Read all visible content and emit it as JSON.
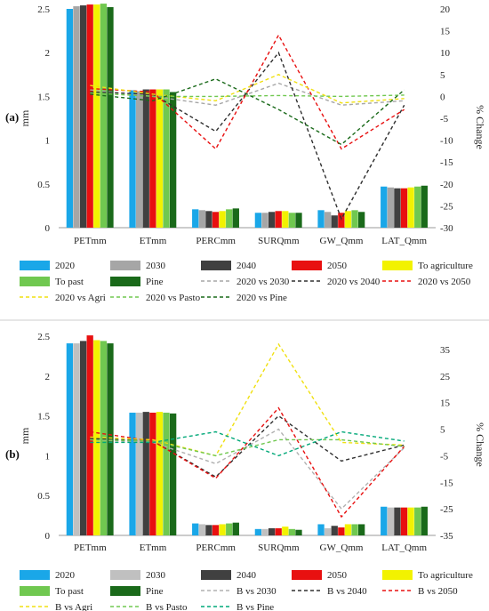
{
  "divider_color": "#cccccc",
  "chart_data": [
    {
      "type": "bar",
      "panel_label": "(a)",
      "categories": [
        "PETmm",
        "ETmm",
        "PERCmm",
        "SURQmm",
        "GW_Qmm",
        "LAT_Qmm"
      ],
      "ylabel": "mm",
      "ylim": [
        0,
        2.5
      ],
      "yticks": [
        "0",
        "0.5",
        "1",
        "1.5",
        "2",
        "2.5"
      ],
      "y2label": "% Change",
      "y2lim": [
        -30,
        20
      ],
      "y2ticks": [
        "-30",
        "-25",
        "-20",
        "-15",
        "-10",
        "-5",
        "0",
        "5",
        "10",
        "15",
        "20"
      ],
      "bar_series": [
        {
          "name": "2020",
          "color": "#1aa7e8",
          "values": [
            2.5,
            1.57,
            0.21,
            0.17,
            0.2,
            0.47
          ]
        },
        {
          "name": "2030",
          "color": "#a6a6a6",
          "values": [
            2.53,
            1.56,
            0.2,
            0.17,
            0.18,
            0.46
          ]
        },
        {
          "name": "2040",
          "color": "#404040",
          "values": [
            2.54,
            1.58,
            0.19,
            0.18,
            0.14,
            0.45
          ]
        },
        {
          "name": "2050",
          "color": "#e81010",
          "values": [
            2.55,
            1.58,
            0.18,
            0.19,
            0.17,
            0.45
          ]
        },
        {
          "name": "To agriculture",
          "color": "#f2f200",
          "values": [
            2.55,
            1.58,
            0.19,
            0.19,
            0.19,
            0.46
          ]
        },
        {
          "name": "To past",
          "color": "#70c850",
          "values": [
            2.56,
            1.58,
            0.21,
            0.17,
            0.2,
            0.47
          ]
        },
        {
          "name": "Pine",
          "color": "#1a6a1a",
          "values": [
            2.52,
            1.55,
            0.22,
            0.17,
            0.18,
            0.48
          ]
        }
      ],
      "line_series": [
        {
          "name": "2020 vs 2030",
          "color": "#a6a6a6",
          "values": [
            1.5,
            0.0,
            -2.0,
            3.0,
            -2.0,
            -1.0
          ]
        },
        {
          "name": "2020 vs 2040",
          "color": "#303030",
          "values": [
            1.0,
            0.5,
            -8.0,
            10.0,
            -28.0,
            -2.0
          ]
        },
        {
          "name": "2020 vs 2050",
          "color": "#e81010",
          "values": [
            1.8,
            1.0,
            -12.0,
            14.0,
            -12.0,
            -3.0
          ]
        },
        {
          "name": "2020  vs Agri",
          "color": "#f0e010",
          "values": [
            2.5,
            0.5,
            -1.0,
            5.0,
            -1.5,
            -0.5
          ]
        },
        {
          "name": "2020  vs Pasto",
          "color": "#70c850",
          "values": [
            0.8,
            0.0,
            0.0,
            0.2,
            0.0,
            0.3
          ]
        },
        {
          "name": "2020  vs Pine",
          "color": "#1a6a1a",
          "values": [
            0.5,
            -1.0,
            4.0,
            -3.0,
            -11.0,
            1.5
          ]
        }
      ]
    },
    {
      "type": "bar",
      "panel_label": "(b)",
      "categories": [
        "PETmm",
        "ETmm",
        "PERCmm",
        "SURQmm",
        "GW_Qmm",
        "LAT_Qmm"
      ],
      "ylabel": "mm",
      "ylim": [
        0,
        2.5
      ],
      "yticks": [
        "0",
        "0.5",
        "1",
        "1.5",
        "2",
        "2.5"
      ],
      "y2label": "% Change",
      "y2lim": [
        -35,
        40
      ],
      "y2ticks": [
        "-35",
        "-25",
        "-15",
        "-5",
        "5",
        "15",
        "25",
        "35"
      ],
      "bar_series": [
        {
          "name": "2020",
          "color": "#1aa7e8",
          "values": [
            2.41,
            1.54,
            0.15,
            0.08,
            0.14,
            0.36
          ]
        },
        {
          "name": "2030",
          "color": "#c0c0c0",
          "values": [
            2.41,
            1.54,
            0.14,
            0.08,
            0.09,
            0.35
          ]
        },
        {
          "name": "2040",
          "color": "#404040",
          "values": [
            2.44,
            1.55,
            0.13,
            0.09,
            0.12,
            0.35
          ]
        },
        {
          "name": "2050",
          "color": "#e81010",
          "values": [
            2.51,
            1.54,
            0.13,
            0.09,
            0.1,
            0.35
          ]
        },
        {
          "name": "To agriculture",
          "color": "#f2f200",
          "values": [
            2.45,
            1.55,
            0.14,
            0.11,
            0.14,
            0.35
          ]
        },
        {
          "name": "To past",
          "color": "#70c850",
          "values": [
            2.44,
            1.54,
            0.15,
            0.08,
            0.14,
            0.35
          ]
        },
        {
          "name": "Pine",
          "color": "#1a6a1a",
          "values": [
            2.41,
            1.53,
            0.16,
            0.07,
            0.14,
            0.36
          ]
        }
      ],
      "line_series": [
        {
          "name": "B  vs 2030",
          "color": "#b0b0b0",
          "values": [
            1.0,
            0.0,
            -8.0,
            5.0,
            -25.0,
            -2.0
          ]
        },
        {
          "name": "B  vs 2040",
          "color": "#303030",
          "values": [
            1.5,
            0.5,
            -13.0,
            10.0,
            -7.0,
            -1.0
          ]
        },
        {
          "name": "B  vs 2050",
          "color": "#e81010",
          "values": [
            4.0,
            0.5,
            -13.5,
            13.0,
            -28.0,
            -1.5
          ]
        },
        {
          "name": "B  vs Agri",
          "color": "#f0e010",
          "values": [
            2.0,
            1.0,
            -5.0,
            37.0,
            0.0,
            -1.0
          ]
        },
        {
          "name": "B  vs Pasto",
          "color": "#70c850",
          "values": [
            1.0,
            0.5,
            -5.0,
            1.0,
            1.0,
            -1.5
          ]
        },
        {
          "name": "B  vs Pine",
          "color": "#00a878",
          "values": [
            0.0,
            0.0,
            4.0,
            -5.0,
            4.0,
            0.5
          ]
        }
      ]
    }
  ]
}
